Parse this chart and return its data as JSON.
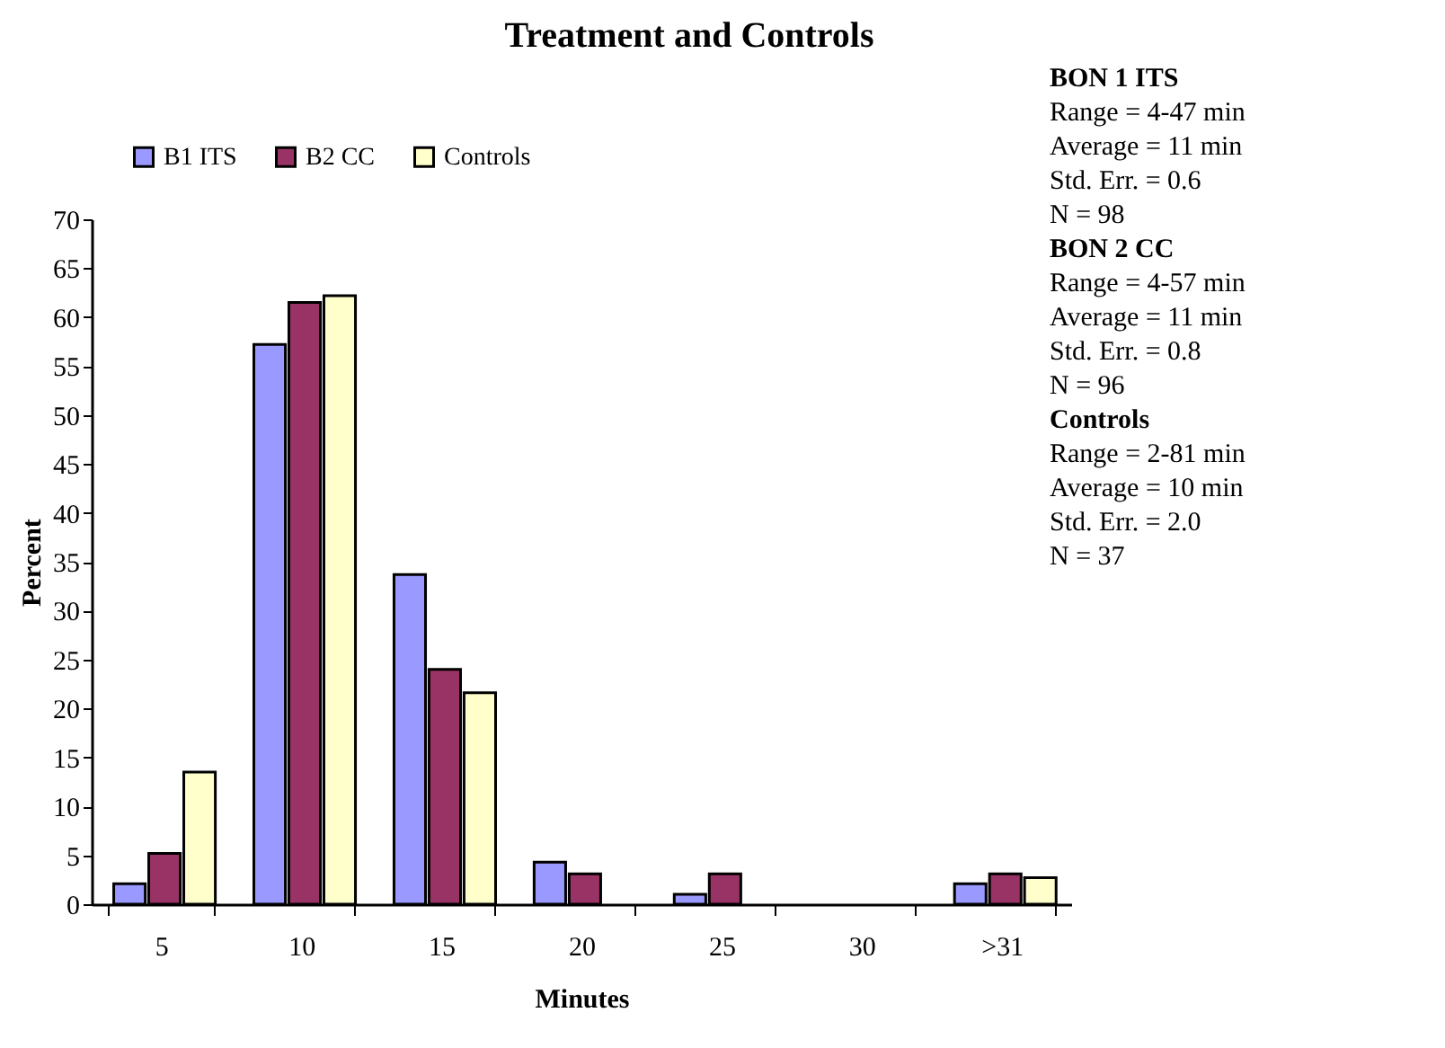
{
  "chart_data": {
    "type": "bar",
    "title": "Treatment and Controls",
    "xlabel": "Minutes",
    "ylabel": "Percent",
    "categories": [
      "5",
      "10",
      "15",
      "20",
      "25",
      "30",
      ">31"
    ],
    "series": [
      {
        "name": "B1 ITS",
        "color": "#9999ff",
        "values": [
          2.1,
          57.2,
          33.7,
          4.3,
          1.0,
          0,
          2.1
        ]
      },
      {
        "name": "B2 CC",
        "color": "#993366",
        "values": [
          5.2,
          61.5,
          24.0,
          3.1,
          3.1,
          0,
          3.1
        ]
      },
      {
        "name": "Controls",
        "color": "#ffffcc",
        "values": [
          13.5,
          62.2,
          21.6,
          0,
          0,
          0,
          2.7
        ]
      }
    ],
    "ylim": [
      0,
      70
    ],
    "yticks": [
      0,
      5,
      10,
      15,
      20,
      25,
      30,
      35,
      40,
      45,
      50,
      55,
      60,
      65,
      70
    ],
    "grid": false,
    "legend": "top left",
    "annotations": [
      "BON 1 ITS",
      "Range = 4-47 min",
      "Average = 11 min",
      "Std. Err. = 0.6",
      "N = 98",
      "BON 2 CC",
      "Range = 4-57 min",
      "Average = 11   min",
      "Std. Err. =  0.8",
      "N = 96",
      "Controls",
      "Range = 2-81 min",
      "Average = 10 min",
      "Std. Err. =  2.0",
      "N = 37"
    ]
  }
}
